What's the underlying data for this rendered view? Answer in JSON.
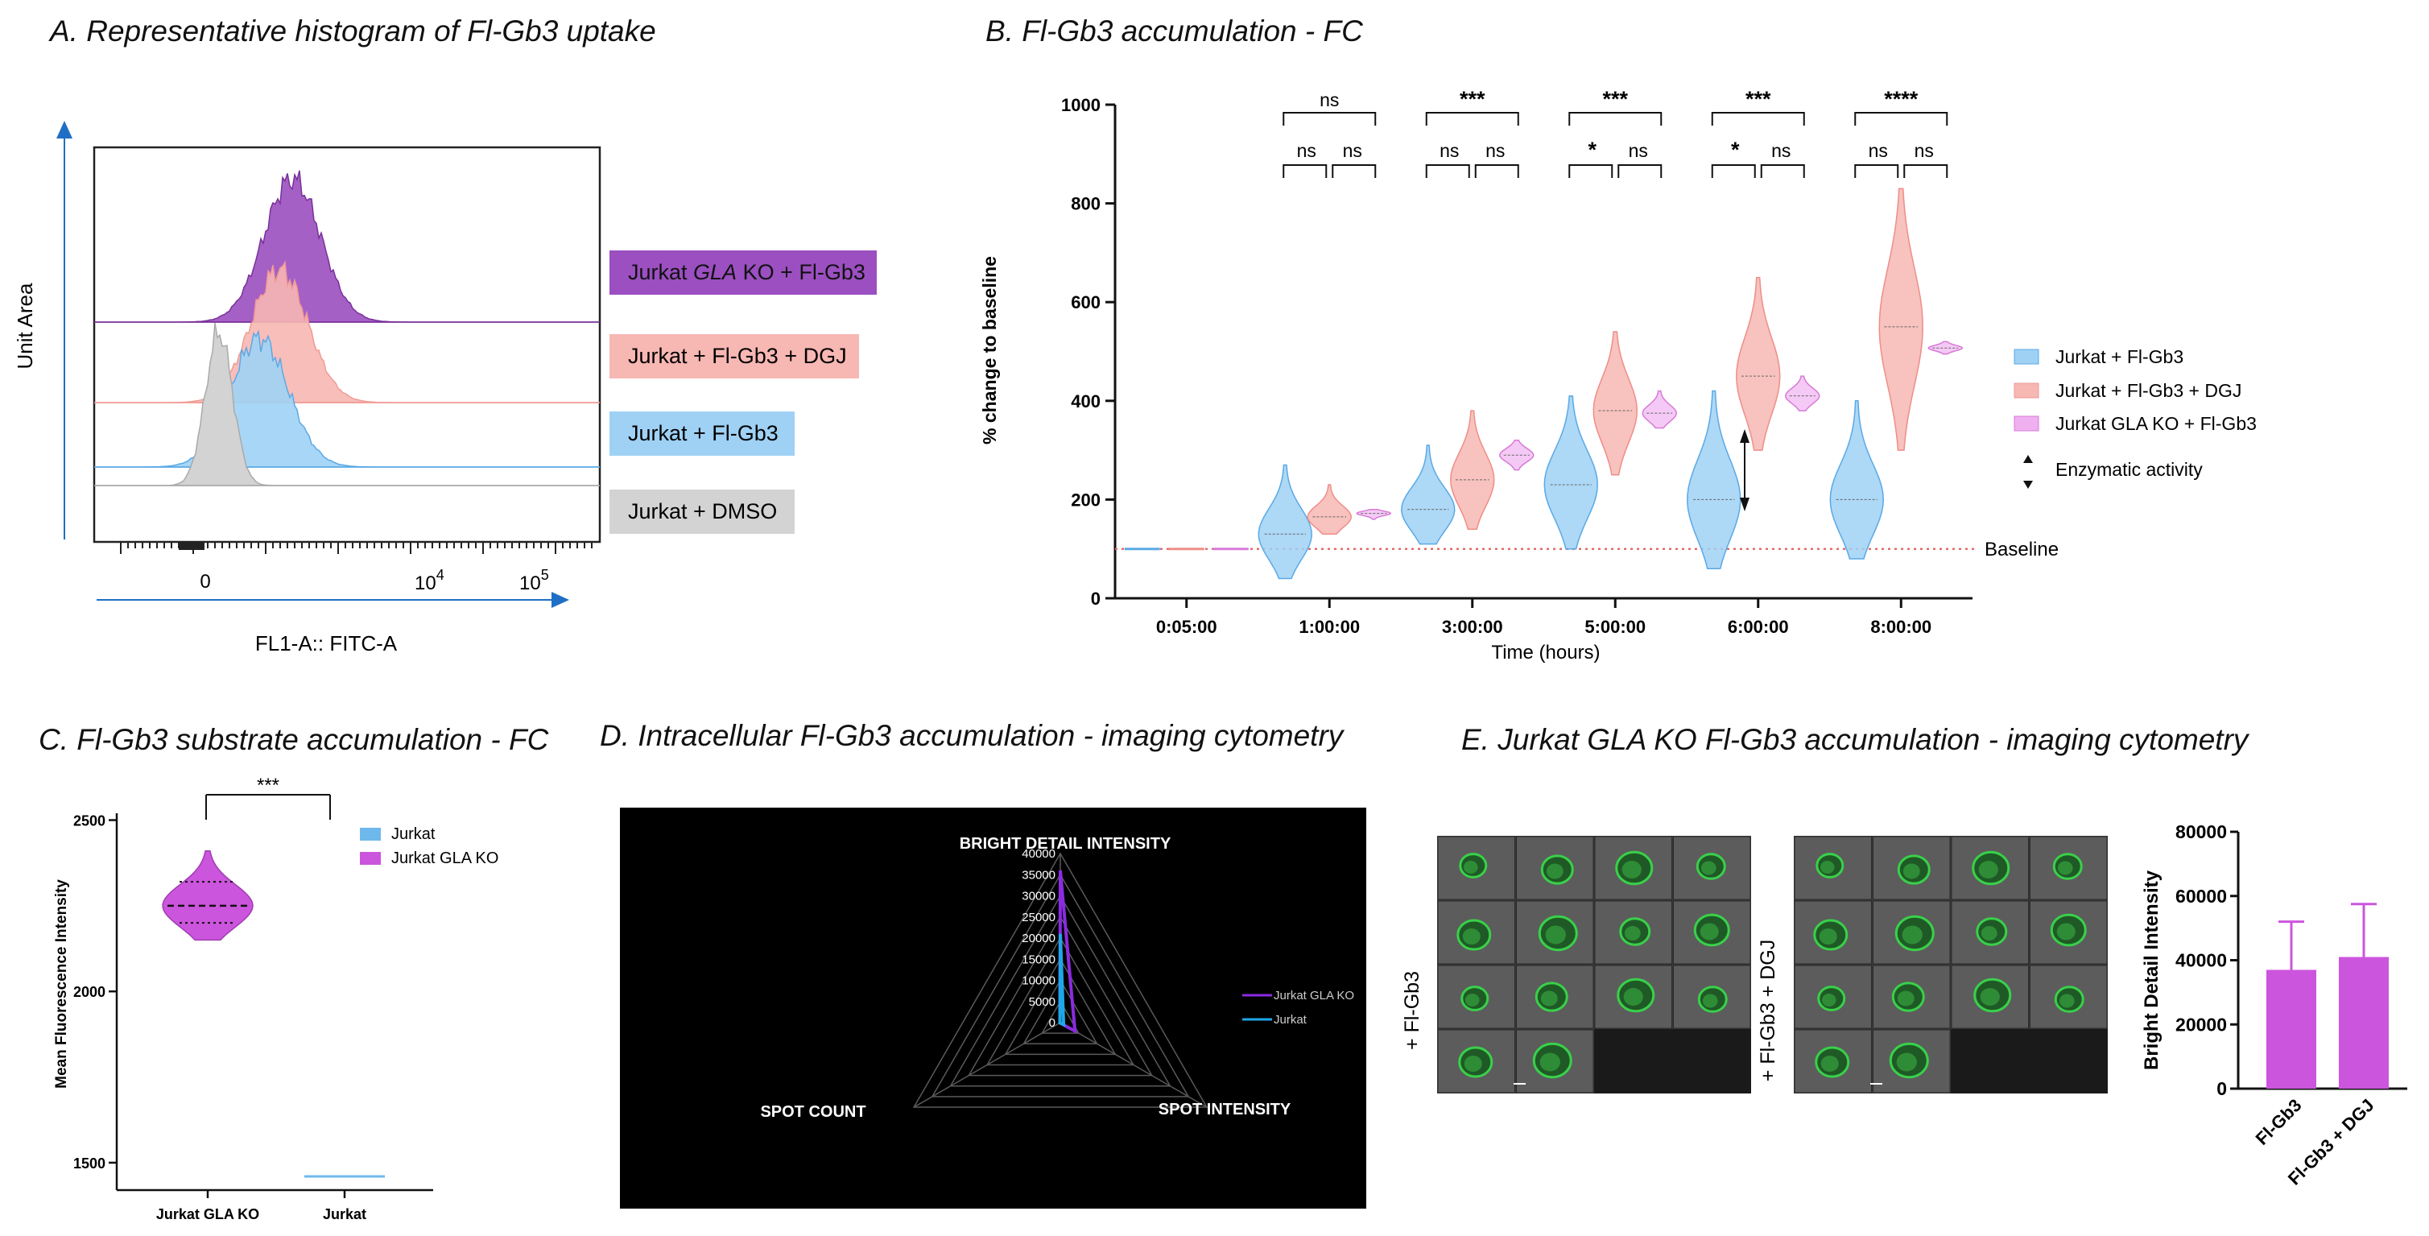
{
  "panel_titles": {
    "a": "A. Representative histogram of Fl-Gb3 uptake",
    "b": "B. Fl-Gb3 accumulation - FC",
    "c": "C. Fl-Gb3 substrate accumulation - FC",
    "d": "D.  Intracellular Fl-Gb3 accumulation - imaging cytometry",
    "e": "E. Jurkat GLA KO Fl-Gb3 accumulation - imaging cytometry"
  },
  "colors": {
    "blue": "#9fd1f5",
    "blue_line": "#5aa9e6",
    "pink": "#f7b7b3",
    "purple": "#9b4fc0",
    "magenta": "#cc55dd",
    "grey": "#d3d3d3",
    "baseline": "#e46b6b",
    "radar_purple": "#8a2be2",
    "radar_cyan": "#1ea7e8"
  },
  "chart_data": [
    {
      "id": "A",
      "type": "histogram",
      "title": "A. Representative histogram of Fl-Gb3 uptake",
      "xlabel": "FL1-A:: FITC-A",
      "ylabel": "Unit Area",
      "x_ticks": [
        "0",
        "10^4",
        "10^5"
      ],
      "x_tick_labels": {
        "zero": "0",
        "ten": "10",
        "e4": "4",
        "e5": "5"
      },
      "legend": [
        {
          "label_pre": "Jurkat ",
          "label_italic": "GLA",
          "label_post": " KO + Fl-Gb3",
          "color": "#9b4fc0"
        },
        {
          "label_pre": "Jurkat + Fl-Gb3 + DGJ",
          "label_italic": "",
          "label_post": "",
          "color": "#f7b7b3"
        },
        {
          "label_pre": "Jurkat + Fl-Gb3",
          "label_italic": "",
          "label_post": "",
          "color": "#9fd1f5"
        },
        {
          "label_pre": "Jurkat + DMSO",
          "label_italic": "",
          "label_post": "",
          "color": "#d3d3d3"
        }
      ]
    },
    {
      "id": "B",
      "type": "violin",
      "title": "B. Fl-Gb3 accumulation - FC",
      "xlabel": "Time (hours)",
      "ylabel": "% change to baseline",
      "ylim": [
        0,
        1000
      ],
      "y_ticks": [
        "0",
        "200",
        "400",
        "600",
        "800",
        "1000"
      ],
      "categories": [
        "0:05:00",
        "1:00:00",
        "3:00:00",
        "5:00:00",
        "6:00:00",
        "8:00:00"
      ],
      "series": [
        {
          "name": "Jurkat + Fl-Gb3",
          "medians": [
            100,
            130,
            180,
            230,
            200,
            200
          ],
          "ranges": [
            [
              98,
              102
            ],
            [
              40,
              270
            ],
            [
              110,
              310
            ],
            [
              100,
              410
            ],
            [
              60,
              420
            ],
            [
              80,
              400
            ]
          ]
        },
        {
          "name": "Jurkat + Fl-Gb3 + DGJ",
          "medians": [
            100,
            165,
            240,
            380,
            450,
            550
          ],
          "ranges": [
            [
              98,
              102
            ],
            [
              130,
              230
            ],
            [
              140,
              380
            ],
            [
              250,
              540
            ],
            [
              300,
              650
            ],
            [
              300,
              830
            ]
          ]
        },
        {
          "name": "Jurkat GLA KO + Fl-Gb3",
          "medians": [
            100,
            172,
            290,
            375,
            410,
            507
          ],
          "ranges": [
            [
              98,
              102
            ],
            [
              160,
              180
            ],
            [
              260,
              320
            ],
            [
              345,
              420
            ],
            [
              380,
              450
            ],
            [
              495,
              520
            ]
          ]
        }
      ],
      "significance": [
        {
          "group": "1:00:00",
          "top": "ns",
          "left": "ns",
          "right": "ns"
        },
        {
          "group": "3:00:00",
          "top": "***",
          "left": "ns",
          "right": "ns"
        },
        {
          "group": "5:00:00",
          "top": "***",
          "left": "*",
          "right": "ns"
        },
        {
          "group": "6:00:00",
          "top": "***",
          "left": "*",
          "right": "ns"
        },
        {
          "group": "8:00:00",
          "top": "****",
          "left": "ns",
          "right": "ns"
        }
      ],
      "baseline_value": 100,
      "baseline_label": "Baseline",
      "enzymatic_label": "Enzymatic activity",
      "legend": [
        "Jurkat + Fl-Gb3",
        "Jurkat + Fl-Gb3 + DGJ",
        "Jurkat GLA KO + Fl-Gb3"
      ]
    },
    {
      "id": "C",
      "type": "violin",
      "title": "C. Fl-Gb3 substrate accumulation - FC",
      "ylabel": "Mean Fluorescence Intensity",
      "ylim": [
        1420,
        2520
      ],
      "y_ticks": [
        "1500",
        "2000",
        "2500"
      ],
      "categories": [
        "Jurkat GLA KO",
        "Jurkat"
      ],
      "series": [
        {
          "name": "Jurkat GLA KO",
          "median": 2250,
          "q1": 2200,
          "q3": 2320,
          "min": 2150,
          "max": 2410
        },
        {
          "name": "Jurkat",
          "value": 1460
        }
      ],
      "significance": "***",
      "legend": [
        "Jurkat",
        "Jurkat GLA KO"
      ]
    },
    {
      "id": "D",
      "type": "radar",
      "title": "D.  Intracellular Fl-Gb3 accumulation - imaging cytometry",
      "axes": [
        "BRIGHT DETAIL INTENSITY",
        "SPOT INTENSITY",
        "SPOT COUNT"
      ],
      "r_ticks": [
        "0",
        "5000",
        "10000",
        "15000",
        "20000",
        "25000",
        "30000",
        "35000",
        "40000"
      ],
      "rmax": 40000,
      "series": [
        {
          "name": "Jurkat GLA KO",
          "values": [
            36000,
            4000,
            100
          ]
        },
        {
          "name": "Jurkat",
          "values": [
            21000,
            900,
            100
          ]
        }
      ]
    },
    {
      "id": "E",
      "type": "bar",
      "title": "E. Jurkat GLA KO Fl-Gb3 accumulation - imaging cytometry",
      "ylabel": "Bright Detail Intensity",
      "ylim": [
        0,
        80000
      ],
      "y_ticks": [
        "0",
        "20000",
        "40000",
        "60000",
        "80000"
      ],
      "categories": [
        "Fl-Gb3",
        "Fl-Gb3 + DGJ"
      ],
      "values": [
        37000,
        41000
      ],
      "errors": [
        15000,
        16500
      ],
      "image_labels": [
        "+ Fl-Gb3",
        "+ Fl-Gb3 + DGJ"
      ]
    }
  ]
}
